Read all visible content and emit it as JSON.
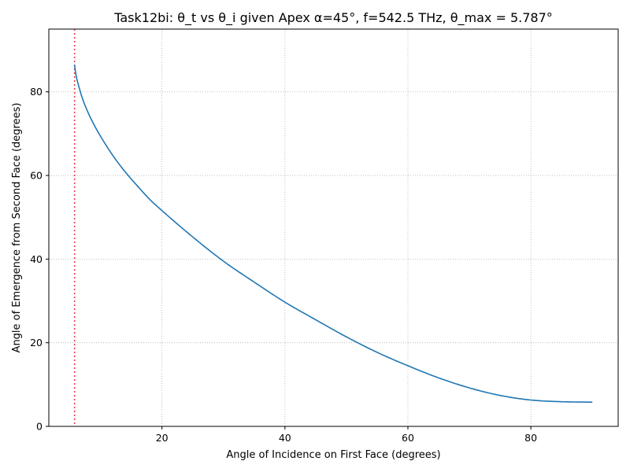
{
  "chart_data": {
    "type": "line",
    "title": "Task12bi: θ_t vs θ_i given Apex α=45°, f=542.5 THz, θ_max = 5.787°",
    "xlabel": "Angle of Incidence on First Face (degrees)",
    "ylabel": "Angle of Emergence from Second Face (degrees)",
    "xlim": [
      1.6,
      94.2
    ],
    "ylim": [
      0,
      95
    ],
    "xticks": [
      20,
      40,
      60,
      80
    ],
    "yticks": [
      0,
      20,
      40,
      60,
      80
    ],
    "grid": true,
    "grid_style": "dotted",
    "legend": "none",
    "colors": {
      "line": "#1f77b4",
      "vline": "#e8404f",
      "grid": "#b0b0b0",
      "axes": "#000000"
    },
    "vline": {
      "x": 5.787,
      "style": "dotted"
    },
    "series": [
      {
        "x": [
          5.787,
          6,
          6.5,
          7,
          8,
          9,
          10,
          12,
          14,
          16,
          18,
          20,
          25,
          30,
          35,
          40,
          45,
          50,
          55,
          60,
          65,
          70,
          75,
          80,
          85,
          90
        ],
        "y": [
          86.5,
          84.2,
          81.2,
          78.7,
          75.0,
          72.0,
          69.4,
          64.8,
          60.9,
          57.5,
          54.3,
          51.6,
          45.3,
          39.5,
          34.5,
          29.7,
          25.5,
          21.4,
          17.7,
          14.5,
          11.6,
          9.2,
          7.4,
          6.3,
          5.9,
          5.79
        ]
      }
    ]
  }
}
